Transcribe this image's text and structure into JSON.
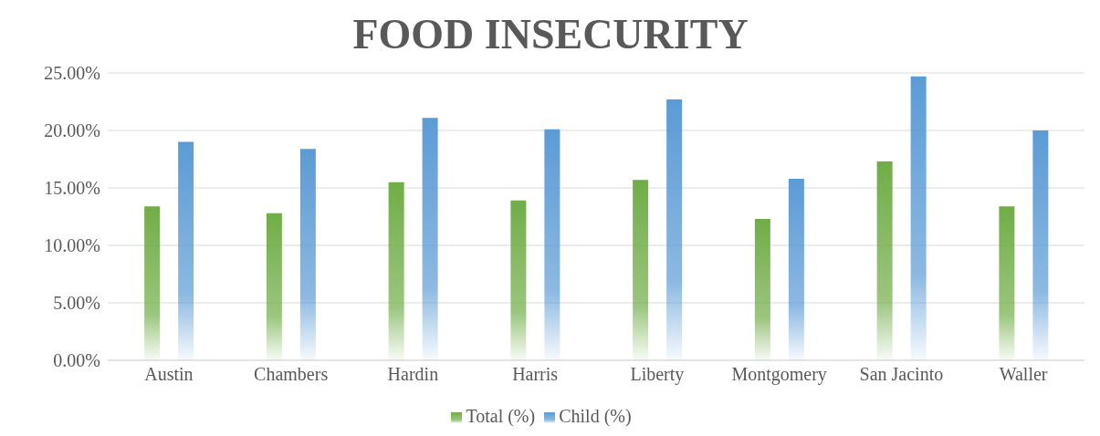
{
  "chart_data": {
    "type": "bar",
    "title": "FOOD INSECURITY",
    "categories": [
      "Austin",
      "Chambers",
      "Hardin",
      "Harris",
      "Liberty",
      "Montgomery",
      "San Jacinto",
      "Waller"
    ],
    "series": [
      {
        "name": "Total (%)",
        "color": "#70ad47",
        "values": [
          13.4,
          12.8,
          15.5,
          13.9,
          15.7,
          12.3,
          17.3,
          13.4
        ]
      },
      {
        "name": "Child (%)",
        "color": "#5b9bd5",
        "values": [
          19.0,
          18.4,
          21.1,
          20.1,
          22.7,
          15.8,
          24.7,
          20.0
        ]
      }
    ],
    "ylim": [
      0,
      25
    ],
    "yticks": [
      {
        "value": 0,
        "label": "0.00%"
      },
      {
        "value": 5,
        "label": "5.00%"
      },
      {
        "value": 10,
        "label": "10.00%"
      },
      {
        "value": 15,
        "label": "15.00%"
      },
      {
        "value": 20,
        "label": "20.00%"
      },
      {
        "value": 25,
        "label": "25.00%"
      }
    ],
    "grid": "y",
    "legend": "bottom"
  }
}
